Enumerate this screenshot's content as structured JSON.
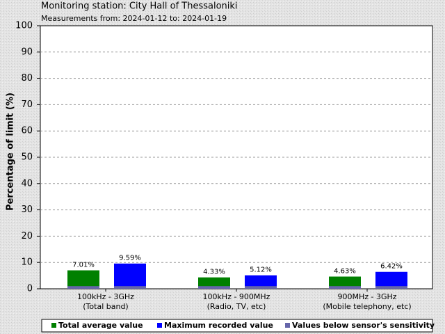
{
  "chart_data": {
    "type": "bar",
    "title": "Monitoring station: City Hall of Thessaloniki",
    "subtitle": "Measurements from: 2024-01-12 to: 2024-01-19",
    "y_label": "Percentage of limit (%)",
    "categories": [
      [
        "100kHz - 3GHz",
        "(Total band)"
      ],
      [
        "100kHz - 900MHz",
        "(Radio, TV, etc)"
      ],
      [
        "900MHz - 3GHz",
        "(Mobile telephony, etc)"
      ]
    ],
    "series": [
      {
        "name": "Total average value",
        "color": "#008000",
        "values": [
          7.01,
          4.33,
          4.63
        ],
        "value_labels": [
          "7.01%",
          "4.33%",
          "4.63%"
        ]
      },
      {
        "name": "Maximum recorded value",
        "color": "#0000ff",
        "values": [
          9.59,
          5.12,
          6.42
        ],
        "value_labels": [
          "9.59%",
          "5.12%",
          "6.42%"
        ]
      },
      {
        "name": "Values below sensor's sensitivity",
        "color": "#6666aa",
        "values": [
          1,
          1,
          1
        ]
      }
    ],
    "ylim": [
      0,
      100
    ],
    "yticks": [
      0,
      10,
      20,
      30,
      40,
      50,
      60,
      70,
      80,
      90,
      100
    ],
    "grid": true
  }
}
